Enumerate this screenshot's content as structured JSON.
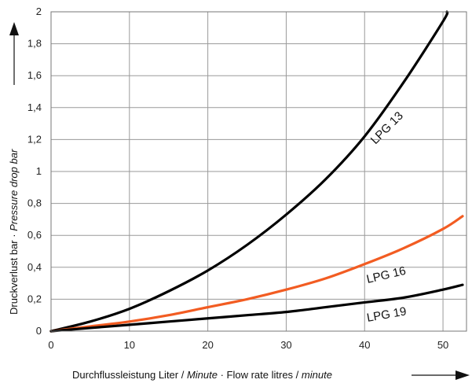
{
  "chart_data": {
    "type": "line",
    "xlim": [
      0,
      53
    ],
    "ylim": [
      0,
      2
    ],
    "x_ticks": [
      "0",
      "10",
      "20",
      "30",
      "40",
      "50"
    ],
    "y_ticks": [
      "0",
      "0,2",
      "0,4",
      "0,6",
      "0,8",
      "1",
      "1,2",
      "1,4",
      "1,6",
      "1,8",
      "2"
    ],
    "grid": "on",
    "xlabel": {
      "part1": "Durchflussleistung  Liter / ",
      "part1_italic": "Minute",
      "sep": "  ·  Flow rate   litres / ",
      "part2_italic": "minute"
    },
    "ylabel": {
      "part1": "Druckverlust   bar   ·   ",
      "part1_italic": "Pressure drop",
      "sep": "    ",
      "part2_italic": "bar"
    },
    "series": [
      {
        "name": "LPG 13",
        "color": "#000000",
        "x": [
          0,
          5,
          10,
          15,
          20,
          25,
          30,
          35,
          40,
          45,
          50,
          50.5
        ],
        "y": [
          0,
          0.06,
          0.14,
          0.25,
          0.38,
          0.54,
          0.73,
          0.95,
          1.22,
          1.56,
          1.94,
          2.0
        ]
      },
      {
        "name": "LPG 16",
        "color": "#f25c22",
        "x": [
          0,
          5,
          10,
          15,
          20,
          25,
          30,
          35,
          40,
          45,
          50,
          52.5
        ],
        "y": [
          0,
          0.03,
          0.06,
          0.1,
          0.15,
          0.2,
          0.26,
          0.33,
          0.42,
          0.52,
          0.64,
          0.72
        ]
      },
      {
        "name": "LPG 19",
        "color": "#000000",
        "x": [
          0,
          5,
          10,
          15,
          20,
          25,
          30,
          35,
          40,
          45,
          50,
          52.5
        ],
        "y": [
          0,
          0.02,
          0.04,
          0.06,
          0.08,
          0.1,
          0.12,
          0.15,
          0.18,
          0.21,
          0.26,
          0.29
        ]
      }
    ]
  }
}
